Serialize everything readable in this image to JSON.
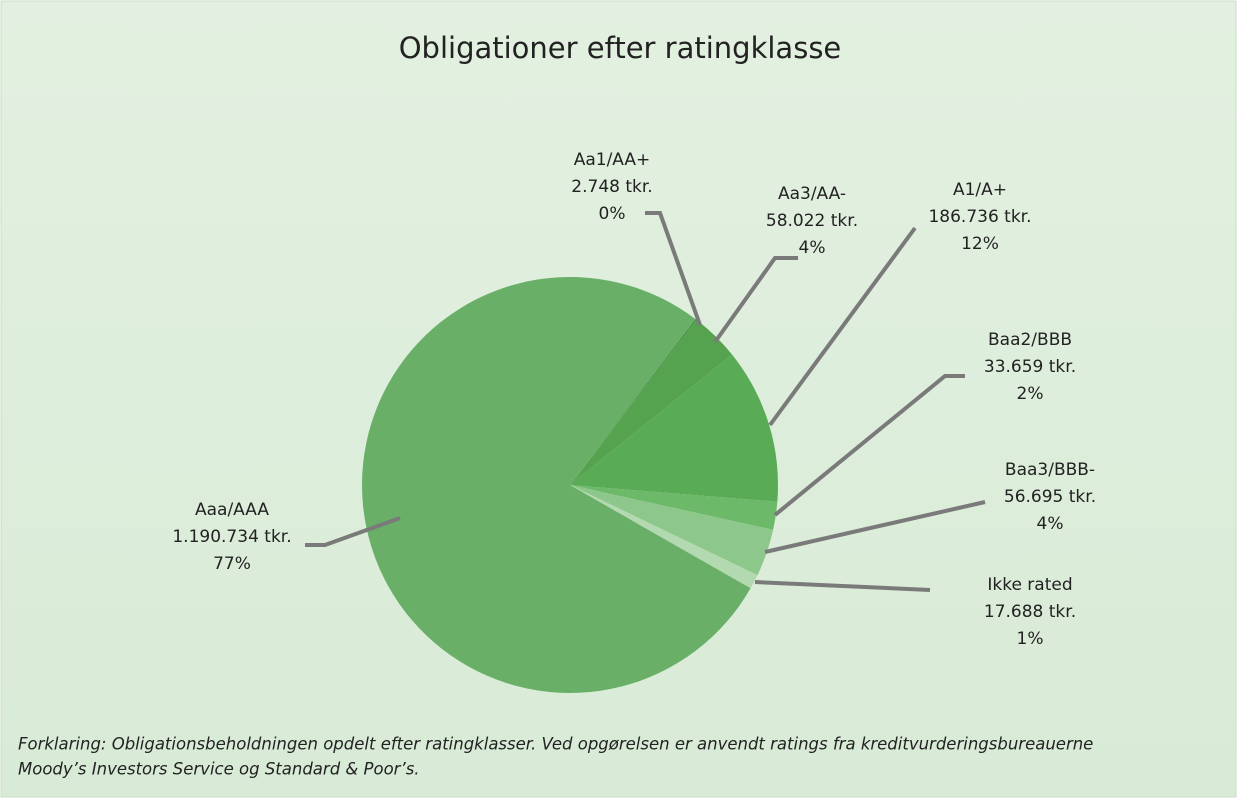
{
  "chart_data": {
    "type": "pie",
    "title": "Obligationer efter ratingklasse",
    "categories": [
      "Aa1/AA+",
      "Aa3/AA-",
      "A1/A+",
      "Baa2/BBB",
      "Baa3/BBB-",
      "Ikke rated",
      "Aaa/AAA"
    ],
    "values": [
      2748,
      58022,
      186736,
      33659,
      56695,
      17688,
      1190734
    ],
    "value_labels": [
      "2.748 tkr.",
      "58.022 tkr.",
      "186.736 tkr.",
      "33.659 tkr.",
      "56.695 tkr.",
      "17.688 tkr.",
      "1.190.734 tkr."
    ],
    "percent_labels": [
      "0%",
      "4%",
      "12%",
      "2%",
      "4%",
      "1%",
      "77%"
    ],
    "colors": [
      "#4e9a4a",
      "#55a24f",
      "#5aab55",
      "#6db96a",
      "#8ec78b",
      "#b3d9b0",
      "#6aaf68"
    ],
    "footnote": [
      "Forklaring: Obligationsbeholdningen opdelt efter ratingklasser. Ved opgørelsen er anvendt ratings fra kreditvurderingsbureauerne",
      "Moody’s Investors Service og Standard & Poor’s."
    ]
  }
}
